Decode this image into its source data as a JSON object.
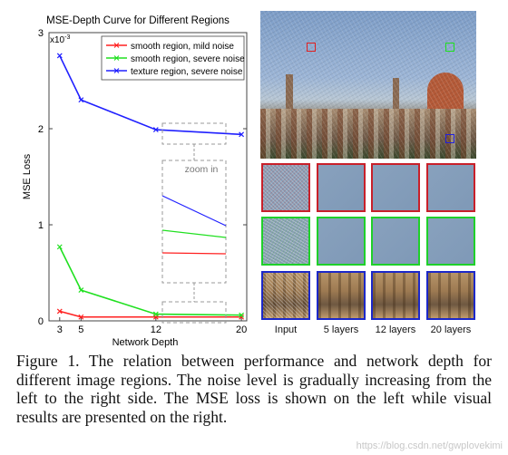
{
  "chart_data": {
    "type": "line",
    "title": "MSE-Depth Curve for Different Regions",
    "xlabel": "Network Depth",
    "ylabel": "MSE Loss",
    "y_scale_label": "x10",
    "y_scale_exp": "-3",
    "x": [
      3,
      5,
      12,
      20
    ],
    "x_ticks": [
      "3",
      "5",
      "12",
      "20"
    ],
    "y_ticks": [
      "0",
      "1",
      "2",
      "3"
    ],
    "ylim": [
      0,
      3
    ],
    "xlim": [
      2,
      20.5
    ],
    "legend_position": "top-right",
    "series": [
      {
        "name": "smooth region, mild noise",
        "color": "#ff2020",
        "values": [
          0.1,
          0.04,
          0.04,
          0.04
        ]
      },
      {
        "name": "smooth region, severe noise",
        "color": "#20e020",
        "values": [
          0.77,
          0.32,
          0.07,
          0.06
        ]
      },
      {
        "name": "texture region, severe noise",
        "color": "#2020ff",
        "values": [
          2.76,
          2.3,
          1.99,
          1.94
        ]
      }
    ],
    "annotations": [
      "zoom in"
    ]
  },
  "grid": {
    "columns": [
      "Input",
      "5 layers",
      "12 layers",
      "20 layers"
    ]
  },
  "caption": "Figure 1. The relation between performance and network depth for different image regions. The noise level is gradually increasing from the left to the right side. The MSE loss is shown on the left while visual results are presented on the right.",
  "watermark": "https://blog.csdn.net/gwplovekimi"
}
